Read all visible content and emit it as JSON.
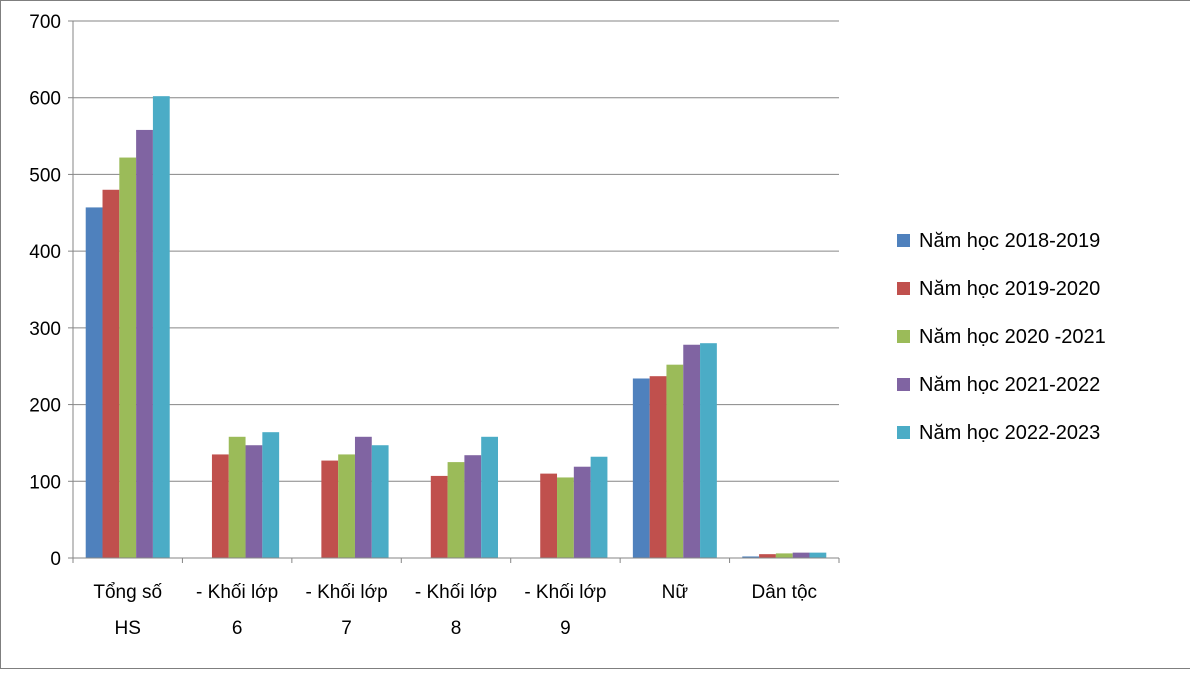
{
  "chart_data": {
    "type": "bar",
    "title": "",
    "xlabel": "",
    "ylabel": "",
    "ylim": [
      0,
      700
    ],
    "yticks": [
      0,
      100,
      200,
      300,
      400,
      500,
      600,
      700
    ],
    "grid": true,
    "legend_position": "right",
    "categories": [
      [
        "Tổng số",
        "HS"
      ],
      [
        "- Khối lớp",
        "6"
      ],
      [
        "- Khối lớp",
        "7"
      ],
      [
        "- Khối lớp",
        "8"
      ],
      [
        "- Khối lớp",
        "9"
      ],
      [
        "Nữ"
      ],
      [
        "Dân tộc"
      ]
    ],
    "series": [
      {
        "name": "Năm học 2018-2019",
        "color": "#4f81bd",
        "values": [
          457,
          0,
          0,
          0,
          0,
          234,
          2
        ]
      },
      {
        "name": "Năm học 2019-2020",
        "color": "#c0504d",
        "values": [
          480,
          135,
          127,
          107,
          110,
          237,
          5
        ]
      },
      {
        "name": "Năm học 2020 -2021",
        "color": "#9bbb59",
        "values": [
          522,
          158,
          135,
          125,
          105,
          252,
          6
        ]
      },
      {
        "name": "Năm học 2021-2022",
        "color": "#8064a2",
        "values": [
          558,
          147,
          158,
          134,
          119,
          278,
          7
        ]
      },
      {
        "name": "Năm học 2022-2023",
        "color": "#4bacc6",
        "values": [
          602,
          164,
          147,
          158,
          132,
          280,
          7
        ]
      }
    ]
  }
}
